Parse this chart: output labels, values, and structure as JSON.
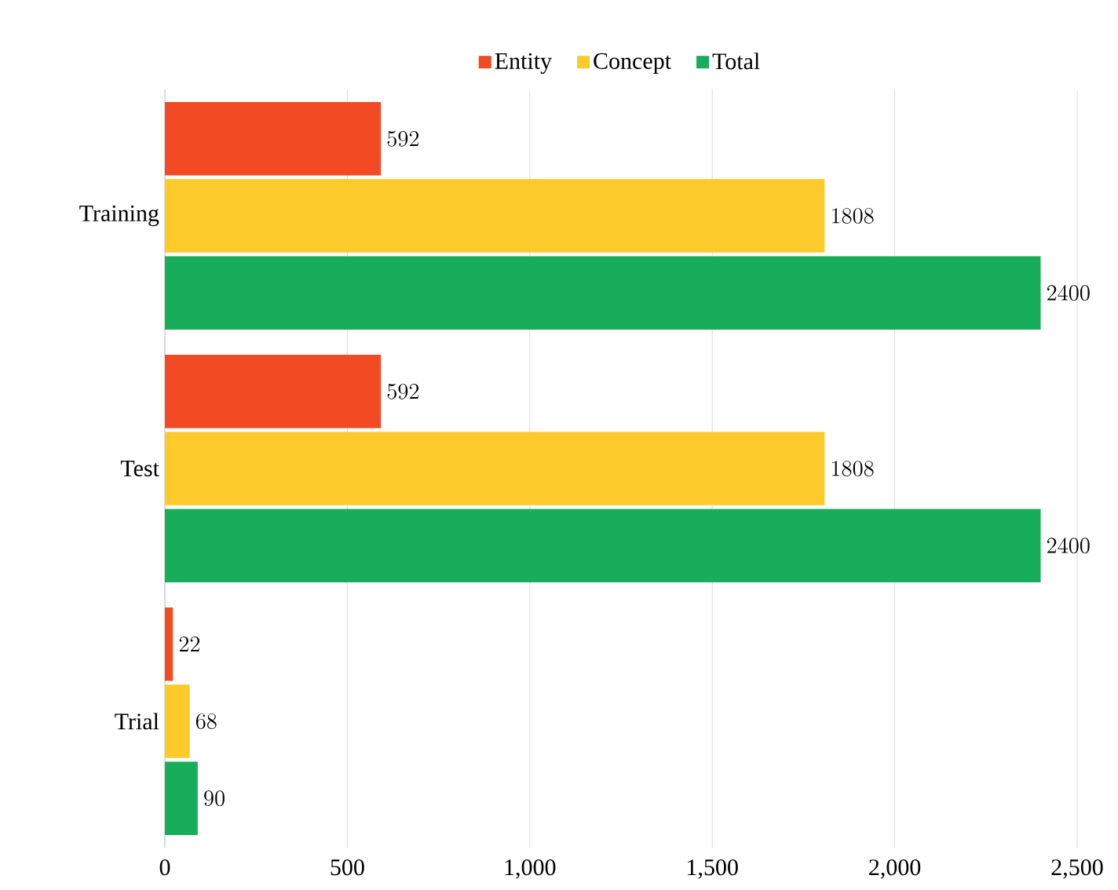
{
  "chart_data": {
    "type": "bar",
    "orientation": "horizontal",
    "categories": [
      "Training",
      "Test",
      "Trial"
    ],
    "series": [
      {
        "name": "Entity",
        "color": "#f24a22",
        "values": [
          592,
          592,
          22
        ]
      },
      {
        "name": "Concept",
        "color": "#fdca2b",
        "values": [
          1808,
          1808,
          68
        ]
      },
      {
        "name": "Total",
        "color": "#18ad5b",
        "values": [
          2400,
          2400,
          90
        ]
      }
    ],
    "xlim": [
      0,
      2500
    ],
    "xticks": [
      0,
      500,
      {
        "value": 1000,
        "label": "1,000"
      },
      {
        "value": 1500,
        "label": "1,500"
      },
      {
        "value": 2000,
        "label": "2,000"
      },
      {
        "value": 2500,
        "label": "2,500"
      }
    ],
    "grid": "x",
    "legend": "top",
    "data_labels": true
  }
}
